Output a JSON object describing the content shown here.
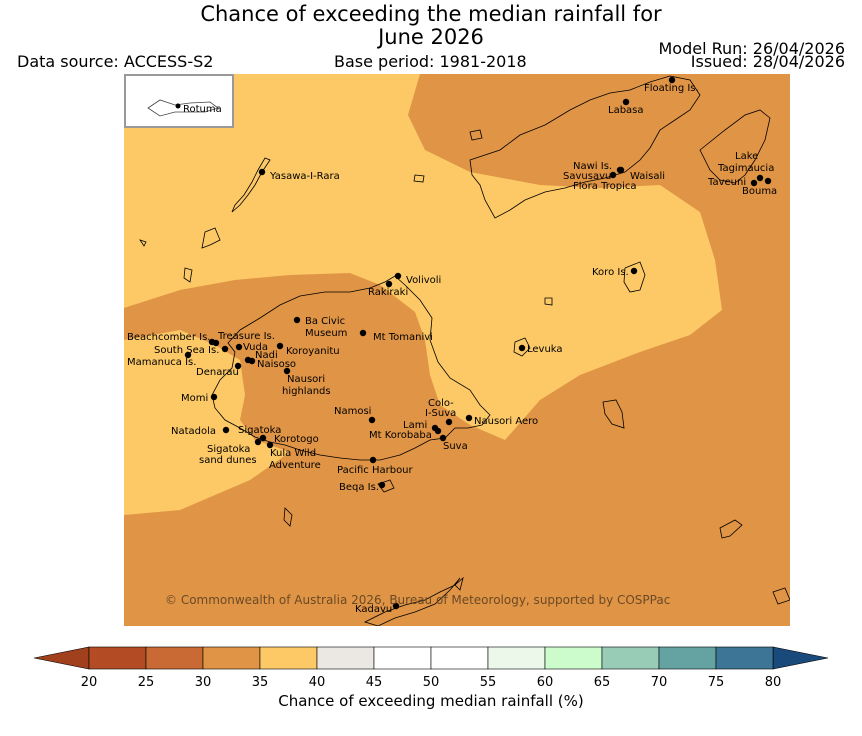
{
  "title": {
    "line1": "Chance of exceeding the median rainfall for",
    "line2": "June 2026"
  },
  "meta": {
    "data_source": "Data source: ACCESS-S2",
    "base_period": "Base period: 1981-2018",
    "model_run": "Model Run: 26/04/2026",
    "issued": "Issued: 28/04/2026"
  },
  "inset_label": "Rotuma",
  "copyright": "© Commonwealth of Australia 2026, Bureau of Meteorology, supported by COSPPac",
  "places": [
    {
      "id": "floating-is",
      "label": "Floating Is."
    },
    {
      "id": "labasa",
      "label": "Labasa"
    },
    {
      "id": "yasawa-i-rara",
      "label": "Yasawa-I-Rara"
    },
    {
      "id": "nawi-is",
      "label": "Nawi Is."
    },
    {
      "id": "savusavu",
      "label": "Savusavu"
    },
    {
      "id": "waisali",
      "label": "Waisali"
    },
    {
      "id": "flora-tropica",
      "label": "Flora Tropica"
    },
    {
      "id": "lake-tagimaucia-1",
      "label": "Lake"
    },
    {
      "id": "lake-tagimaucia-2",
      "label": "Tagimaucia"
    },
    {
      "id": "taveuni",
      "label": "Taveuni"
    },
    {
      "id": "bouma",
      "label": "Bouma"
    },
    {
      "id": "koro-is",
      "label": "Koro Is."
    },
    {
      "id": "volivoli",
      "label": "Volivoli"
    },
    {
      "id": "rakiraki",
      "label": "Rakiraki"
    },
    {
      "id": "ba-civic-museum-1",
      "label": "Ba Civic"
    },
    {
      "id": "ba-civic-museum-2",
      "label": "Museum"
    },
    {
      "id": "mt-tomanivi",
      "label": "Mt Tomanivi"
    },
    {
      "id": "beachcomber-is",
      "label": "Beachcomber Is."
    },
    {
      "id": "treasure-is",
      "label": "Treasure Is."
    },
    {
      "id": "south-sea-is",
      "label": "South Sea Is."
    },
    {
      "id": "vuda",
      "label": "Vuda"
    },
    {
      "id": "koroyanitu",
      "label": "Koroyanitu"
    },
    {
      "id": "nadi",
      "label": "Nadi"
    },
    {
      "id": "naisoso",
      "label": "Naisoso"
    },
    {
      "id": "mamanuca-is",
      "label": "Mamanuca Is."
    },
    {
      "id": "denarau",
      "label": "Denarau"
    },
    {
      "id": "nausori-highlands-1",
      "label": "Nausori"
    },
    {
      "id": "nausori-highlands-2",
      "label": "highlands"
    },
    {
      "id": "levuka",
      "label": "Levuka"
    },
    {
      "id": "momi",
      "label": "Momi"
    },
    {
      "id": "namosi",
      "label": "Namosi"
    },
    {
      "id": "colo-i-suva-1",
      "label": "Colo-"
    },
    {
      "id": "colo-i-suva-2",
      "label": "I-Suva"
    },
    {
      "id": "nausori-aero",
      "label": "Nausori Aero"
    },
    {
      "id": "natadola",
      "label": "Natadola"
    },
    {
      "id": "sigatoka",
      "label": "Sigatoka"
    },
    {
      "id": "lami",
      "label": "Lami"
    },
    {
      "id": "mt-korobaba",
      "label": "Mt Korobaba"
    },
    {
      "id": "suva",
      "label": "Suva"
    },
    {
      "id": "korotogo",
      "label": "Korotogo"
    },
    {
      "id": "sigatoka-sand-dunes-1",
      "label": "Sigatoka"
    },
    {
      "id": "sigatoka-sand-dunes-2",
      "label": "sand dunes"
    },
    {
      "id": "kula-wild-adventure-1",
      "label": "Kula Wild"
    },
    {
      "id": "kula-wild-adventure-2",
      "label": "Adventure"
    },
    {
      "id": "pacific-harbour",
      "label": "Pacific Harbour"
    },
    {
      "id": "beqa-is",
      "label": "Beqa Is."
    },
    {
      "id": "kadavu",
      "label": "Kadavu"
    }
  ],
  "colorbar": {
    "label": "Chance of exceeding median rainfall (%)",
    "ticks": [
      "20",
      "25",
      "30",
      "35",
      "40",
      "45",
      "50",
      "55",
      "60",
      "65",
      "70",
      "75",
      "80"
    ],
    "bins": [
      {
        "from": 20,
        "to": 25,
        "color": "#b34c25"
      },
      {
        "from": 25,
        "to": 30,
        "color": "#c96933"
      },
      {
        "from": 30,
        "to": 35,
        "color": "#e09445"
      },
      {
        "from": 35,
        "to": 40,
        "color": "#fdc966"
      },
      {
        "from": 40,
        "to": 45,
        "color": "#ebe8e3"
      },
      {
        "from": 45,
        "to": 50,
        "color": "#ffffff"
      },
      {
        "from": 50,
        "to": 55,
        "color": "#ffffff"
      },
      {
        "from": 55,
        "to": 60,
        "color": "#ebf8ea"
      },
      {
        "from": 60,
        "to": 65,
        "color": "#ccfccc"
      },
      {
        "from": 65,
        "to": 70,
        "color": "#99ccb6"
      },
      {
        "from": 70,
        "to": 75,
        "color": "#65a2a2"
      },
      {
        "from": 75,
        "to": 80,
        "color": "#3c7595"
      }
    ],
    "under_color": "#a0401d",
    "over_color": "#1a4a7b"
  },
  "colors": {
    "category_30_35": "#e09445",
    "category_35_40": "#fdc966"
  }
}
